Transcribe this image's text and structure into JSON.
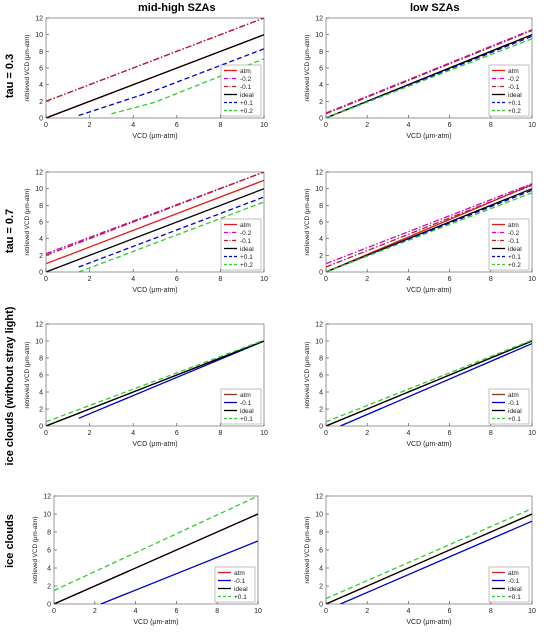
{
  "column_headers": [
    "mid-high SZAs",
    "low SZAs"
  ],
  "row_labels": [
    "tau = 0.3",
    "tau = 0.7",
    "ice clouds (without stray light)",
    "ice clouds"
  ],
  "chart_data": [
    {
      "type": "line",
      "xlabel": "VCD (μm-atm)",
      "ylabel": "retrieved VCD (μm-atm)",
      "xlim": [
        0,
        10
      ],
      "ylim": [
        0,
        12
      ],
      "xticks": [
        0,
        2,
        4,
        6,
        8,
        10
      ],
      "yticks": [
        0,
        2,
        4,
        6,
        8,
        10,
        12
      ],
      "legend": "bottom-right",
      "series": [
        {
          "name": "atm",
          "color": "#e41a1c",
          "style": "solid",
          "x": [
            0,
            10
          ],
          "y": [
            0,
            10
          ]
        },
        {
          "name": "-0.2",
          "color": "#d400d4",
          "style": "dashdot",
          "x": [
            0,
            10
          ],
          "y": [
            2,
            12
          ]
        },
        {
          "name": "-0.1",
          "color": "#b22222",
          "style": "dashdot",
          "x": [
            0,
            10
          ],
          "y": [
            2,
            12
          ]
        },
        {
          "name": "ideal",
          "color": "#000000",
          "style": "solid",
          "x": [
            0,
            10
          ],
          "y": [
            0,
            10
          ]
        },
        {
          "name": "+0.1",
          "color": "#0000cc",
          "style": "dashed",
          "x": [
            1.5,
            5,
            10
          ],
          "y": [
            0.3,
            3.3,
            8.3
          ]
        },
        {
          "name": "+0.2",
          "color": "#33cc33",
          "style": "dashed",
          "x": [
            3,
            5,
            10
          ],
          "y": [
            0.5,
            1.9,
            7.1
          ]
        }
      ]
    },
    {
      "type": "line",
      "xlabel": "VCD (μm-atm)",
      "ylabel": "retrieved VCD (μm-atm)",
      "xlim": [
        0,
        10
      ],
      "ylim": [
        0,
        12
      ],
      "xticks": [
        0,
        2,
        4,
        6,
        8,
        10
      ],
      "yticks": [
        0,
        2,
        4,
        6,
        8,
        10,
        12
      ],
      "legend": "bottom-right",
      "series": [
        {
          "name": "atm",
          "color": "#e41a1c",
          "style": "solid",
          "x": [
            0,
            10
          ],
          "y": [
            0,
            10
          ]
        },
        {
          "name": "-0.2",
          "color": "#d400d4",
          "style": "dashdot",
          "x": [
            0,
            10
          ],
          "y": [
            0.6,
            10.6
          ]
        },
        {
          "name": "-0.1",
          "color": "#b22222",
          "style": "dashdot",
          "x": [
            0,
            10
          ],
          "y": [
            0.5,
            10.5
          ]
        },
        {
          "name": "ideal",
          "color": "#000000",
          "style": "solid",
          "x": [
            0,
            10
          ],
          "y": [
            0,
            10
          ]
        },
        {
          "name": "+0.1",
          "color": "#0000cc",
          "style": "dashed",
          "x": [
            0,
            10
          ],
          "y": [
            0,
            9.8
          ]
        },
        {
          "name": "+0.2",
          "color": "#33cc33",
          "style": "dashed",
          "x": [
            0,
            10
          ],
          "y": [
            0,
            9.5
          ]
        }
      ]
    },
    {
      "type": "line",
      "xlabel": "VCD (μm-atm)",
      "ylabel": "retrieved VCD (μm-atm)",
      "xlim": [
        0,
        10
      ],
      "ylim": [
        0,
        12
      ],
      "xticks": [
        0,
        2,
        4,
        6,
        8,
        10
      ],
      "yticks": [
        0,
        2,
        4,
        6,
        8,
        10,
        12
      ],
      "legend": "bottom-right",
      "series": [
        {
          "name": "atm",
          "color": "#e41a1c",
          "style": "solid",
          "x": [
            0,
            10
          ],
          "y": [
            1,
            11
          ]
        },
        {
          "name": "-0.2",
          "color": "#d400d4",
          "style": "dashdot",
          "x": [
            0,
            10
          ],
          "y": [
            2.2,
            12
          ]
        },
        {
          "name": "-0.1",
          "color": "#b22222",
          "style": "dashdot",
          "x": [
            0,
            10
          ],
          "y": [
            2,
            12
          ]
        },
        {
          "name": "ideal",
          "color": "#000000",
          "style": "solid",
          "x": [
            0,
            10
          ],
          "y": [
            0,
            10
          ]
        },
        {
          "name": "+0.1",
          "color": "#0000cc",
          "style": "dashed",
          "x": [
            1.5,
            10
          ],
          "y": [
            0.6,
            9
          ]
        },
        {
          "name": "+0.2",
          "color": "#33cc33",
          "style": "dashed",
          "x": [
            1.5,
            10
          ],
          "y": [
            0,
            8.4
          ]
        }
      ]
    },
    {
      "type": "line",
      "xlabel": "VCD (μm-atm)",
      "ylabel": "retrieved VCD (μm-atm)",
      "xlim": [
        0,
        10
      ],
      "ylim": [
        0,
        12
      ],
      "xticks": [
        0,
        2,
        4,
        6,
        8,
        10
      ],
      "yticks": [
        0,
        2,
        4,
        6,
        8,
        10,
        12
      ],
      "legend": "bottom-right",
      "series": [
        {
          "name": "atm",
          "color": "#e41a1c",
          "style": "solid",
          "x": [
            0,
            10
          ],
          "y": [
            0,
            10.5
          ]
        },
        {
          "name": "-0.2",
          "color": "#d400d4",
          "style": "dashdot",
          "x": [
            0,
            10
          ],
          "y": [
            1,
            10.6
          ]
        },
        {
          "name": "-0.1",
          "color": "#b22222",
          "style": "dashdot",
          "x": [
            0,
            10
          ],
          "y": [
            0.6,
            10.4
          ]
        },
        {
          "name": "ideal",
          "color": "#000000",
          "style": "solid",
          "x": [
            0,
            10
          ],
          "y": [
            0,
            10
          ]
        },
        {
          "name": "+0.1",
          "color": "#0000cc",
          "style": "dashed",
          "x": [
            0,
            10
          ],
          "y": [
            0,
            9.8
          ]
        },
        {
          "name": "+0.2",
          "color": "#33cc33",
          "style": "dashed",
          "x": [
            0,
            10
          ],
          "y": [
            0,
            9.5
          ]
        }
      ]
    },
    {
      "type": "line",
      "xlabel": "VCD (μm-atm)",
      "ylabel": "retrieved VCD (μm-atm)",
      "xlim": [
        0,
        10
      ],
      "ylim": [
        0,
        12
      ],
      "xticks": [
        0,
        2,
        4,
        6,
        8,
        10
      ],
      "yticks": [
        0,
        2,
        4,
        6,
        8,
        10,
        12
      ],
      "legend": "bottom-right",
      "series": [
        {
          "name": "atm",
          "color": "#8b3a1a",
          "style": "solid",
          "x": [
            0,
            10
          ],
          "y": [
            0,
            10
          ]
        },
        {
          "name": "-0.1",
          "color": "#0000cc",
          "style": "solid",
          "x": [
            1.5,
            10
          ],
          "y": [
            0.9,
            10
          ]
        },
        {
          "name": "ideal",
          "color": "#000000",
          "style": "solid",
          "x": [
            0,
            10
          ],
          "y": [
            0,
            10
          ]
        },
        {
          "name": "+0.1",
          "color": "#33cc33",
          "style": "dashed",
          "x": [
            0,
            10
          ],
          "y": [
            0.5,
            10.1
          ]
        }
      ]
    },
    {
      "type": "line",
      "xlabel": "VCD (μm-atm)",
      "ylabel": "retrieved VCD (μm-atm)",
      "xlim": [
        0,
        10
      ],
      "ylim": [
        0,
        12
      ],
      "xticks": [
        0,
        2,
        4,
        6,
        8,
        10
      ],
      "yticks": [
        0,
        2,
        4,
        6,
        8,
        10,
        12
      ],
      "legend": "bottom-right",
      "series": [
        {
          "name": "atm",
          "color": "#8b3a1a",
          "style": "solid",
          "x": [
            0,
            10
          ],
          "y": [
            0,
            10
          ]
        },
        {
          "name": "-0.1",
          "color": "#0000cc",
          "style": "solid",
          "x": [
            0.7,
            10
          ],
          "y": [
            0,
            9.7
          ]
        },
        {
          "name": "ideal",
          "color": "#000000",
          "style": "solid",
          "x": [
            0,
            10
          ],
          "y": [
            0,
            10
          ]
        },
        {
          "name": "+0.1",
          "color": "#33cc33",
          "style": "dashed",
          "x": [
            0,
            10
          ],
          "y": [
            0.5,
            10.1
          ]
        }
      ]
    },
    {
      "type": "line",
      "xlabel": "VCD (μm-atm)",
      "ylabel": "retrieved VCD (μm-atm)",
      "xlim": [
        0,
        10
      ],
      "ylim": [
        0,
        12
      ],
      "xticks": [
        0,
        2,
        4,
        6,
        8,
        10
      ],
      "yticks": [
        0,
        2,
        4,
        6,
        8,
        10,
        12
      ],
      "legend": "bottom-right",
      "series": [
        {
          "name": "atm",
          "color": "#cc2222",
          "style": "solid",
          "x": [
            0,
            10
          ],
          "y": [
            0,
            10
          ]
        },
        {
          "name": "-0.1",
          "color": "#0000cc",
          "style": "solid",
          "x": [
            2.3,
            10
          ],
          "y": [
            0,
            7
          ]
        },
        {
          "name": "ideal",
          "color": "#000000",
          "style": "solid",
          "x": [
            0,
            10
          ],
          "y": [
            0,
            10
          ]
        },
        {
          "name": "+0.1",
          "color": "#33cc33",
          "style": "dashed",
          "x": [
            0,
            10
          ],
          "y": [
            1.5,
            12
          ]
        }
      ]
    },
    {
      "type": "line",
      "xlabel": "VCD (μm-atm)",
      "ylabel": "retrieved VCD (μm-atm)",
      "xlim": [
        0,
        10
      ],
      "ylim": [
        0,
        12
      ],
      "xticks": [
        0,
        2,
        4,
        6,
        8,
        10
      ],
      "yticks": [
        0,
        2,
        4,
        6,
        8,
        10,
        12
      ],
      "legend": "bottom-right",
      "series": [
        {
          "name": "atm",
          "color": "#cc2222",
          "style": "solid",
          "x": [
            0,
            10
          ],
          "y": [
            0,
            10
          ]
        },
        {
          "name": "-0.1",
          "color": "#0000cc",
          "style": "solid",
          "x": [
            0.7,
            10
          ],
          "y": [
            0,
            9.2
          ]
        },
        {
          "name": "ideal",
          "color": "#000000",
          "style": "solid",
          "x": [
            0,
            10
          ],
          "y": [
            0,
            10
          ]
        },
        {
          "name": "+0.1",
          "color": "#33cc33",
          "style": "dashed",
          "x": [
            0,
            10
          ],
          "y": [
            0.6,
            10.6
          ]
        }
      ]
    }
  ]
}
